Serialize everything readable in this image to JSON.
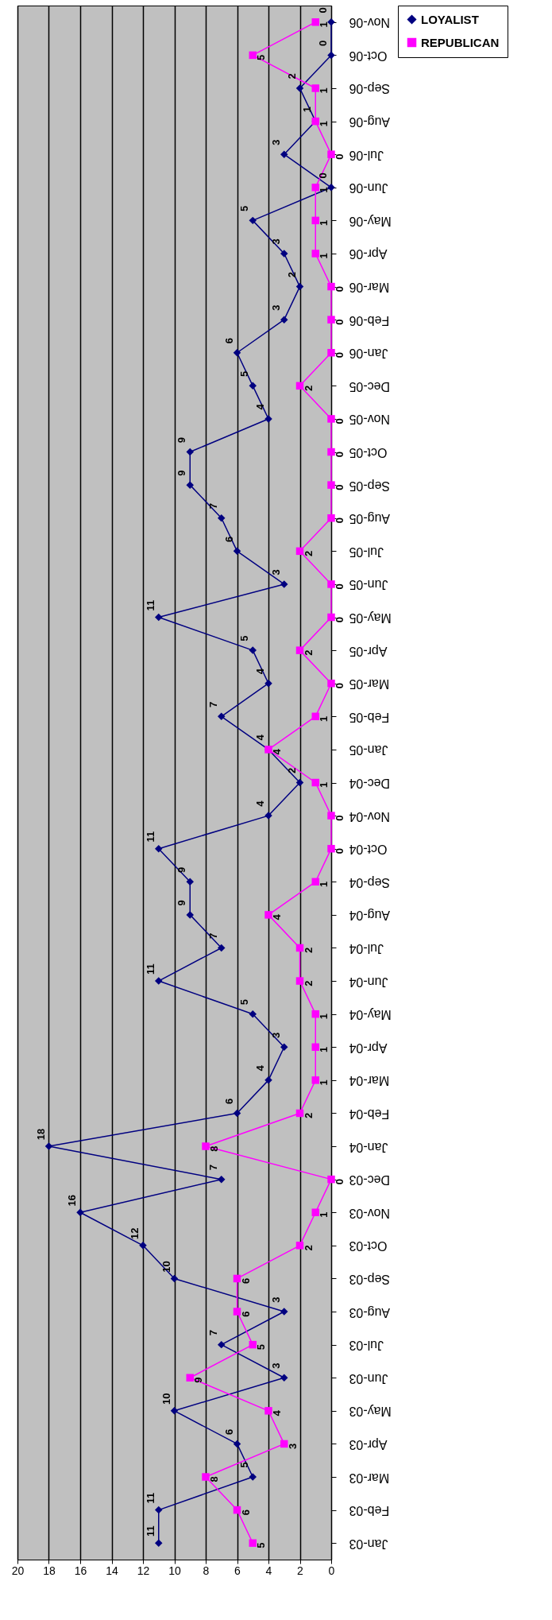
{
  "chart_data": {
    "type": "line",
    "categories": [
      "Nov-06",
      "Oct-06",
      "Sep-06",
      "Aug-06",
      "Jul-06",
      "Jun-06",
      "May-06",
      "Apr-06",
      "Mar-06",
      "Feb-06",
      "Jan-06",
      "Dec-05",
      "Nov-05",
      "Oct-05",
      "Sep-05",
      "Aug-05",
      "Jul-05",
      "Jun-05",
      "May-05",
      "Apr-05",
      "Mar-05",
      "Feb-05",
      "Jan-05",
      "Dec-04",
      "Nov-04",
      "Oct-04",
      "Sep-04",
      "Aug-04",
      "Jul-04",
      "Jun-04",
      "May-04",
      "Apr-04",
      "Mar-04",
      "Feb-04",
      "Jan-04",
      "Dec-03",
      "Nov-03",
      "Oct-03",
      "Sep-03",
      "Aug-03",
      "Jul-03",
      "Jun-03",
      "May-03",
      "Apr-03",
      "Mar-03",
      "Feb-03",
      "Jan-03"
    ],
    "series": [
      {
        "name": "LOYALIST",
        "color": "#000080",
        "marker": "diamond",
        "values": [
          0,
          0,
          2,
          1,
          3,
          0,
          5,
          3,
          2,
          3,
          6,
          5,
          4,
          9,
          9,
          7,
          6,
          3,
          11,
          5,
          4,
          7,
          4,
          2,
          4,
          11,
          9,
          9,
          7,
          11,
          5,
          3,
          4,
          6,
          18,
          7,
          16,
          12,
          10,
          3,
          7,
          3,
          10,
          6,
          5,
          11,
          11
        ]
      },
      {
        "name": "REPUBLICAN",
        "color": "#ff00ff",
        "marker": "square",
        "values": [
          1,
          5,
          1,
          1,
          0,
          1,
          1,
          1,
          0,
          0,
          0,
          2,
          0,
          0,
          0,
          0,
          2,
          0,
          0,
          2,
          0,
          1,
          4,
          1,
          0,
          0,
          1,
          4,
          2,
          2,
          1,
          1,
          1,
          2,
          8,
          0,
          1,
          2,
          6,
          6,
          5,
          9,
          4,
          3,
          8,
          6,
          5
        ]
      }
    ],
    "orientation": "horizontal",
    "xlim": [
      20,
      0
    ],
    "xticks": [
      0,
      2,
      4,
      6,
      8,
      10,
      12,
      14,
      16,
      18,
      20
    ],
    "grid": "x",
    "legend": "right",
    "data_labels": true,
    "line_style": "solid"
  }
}
